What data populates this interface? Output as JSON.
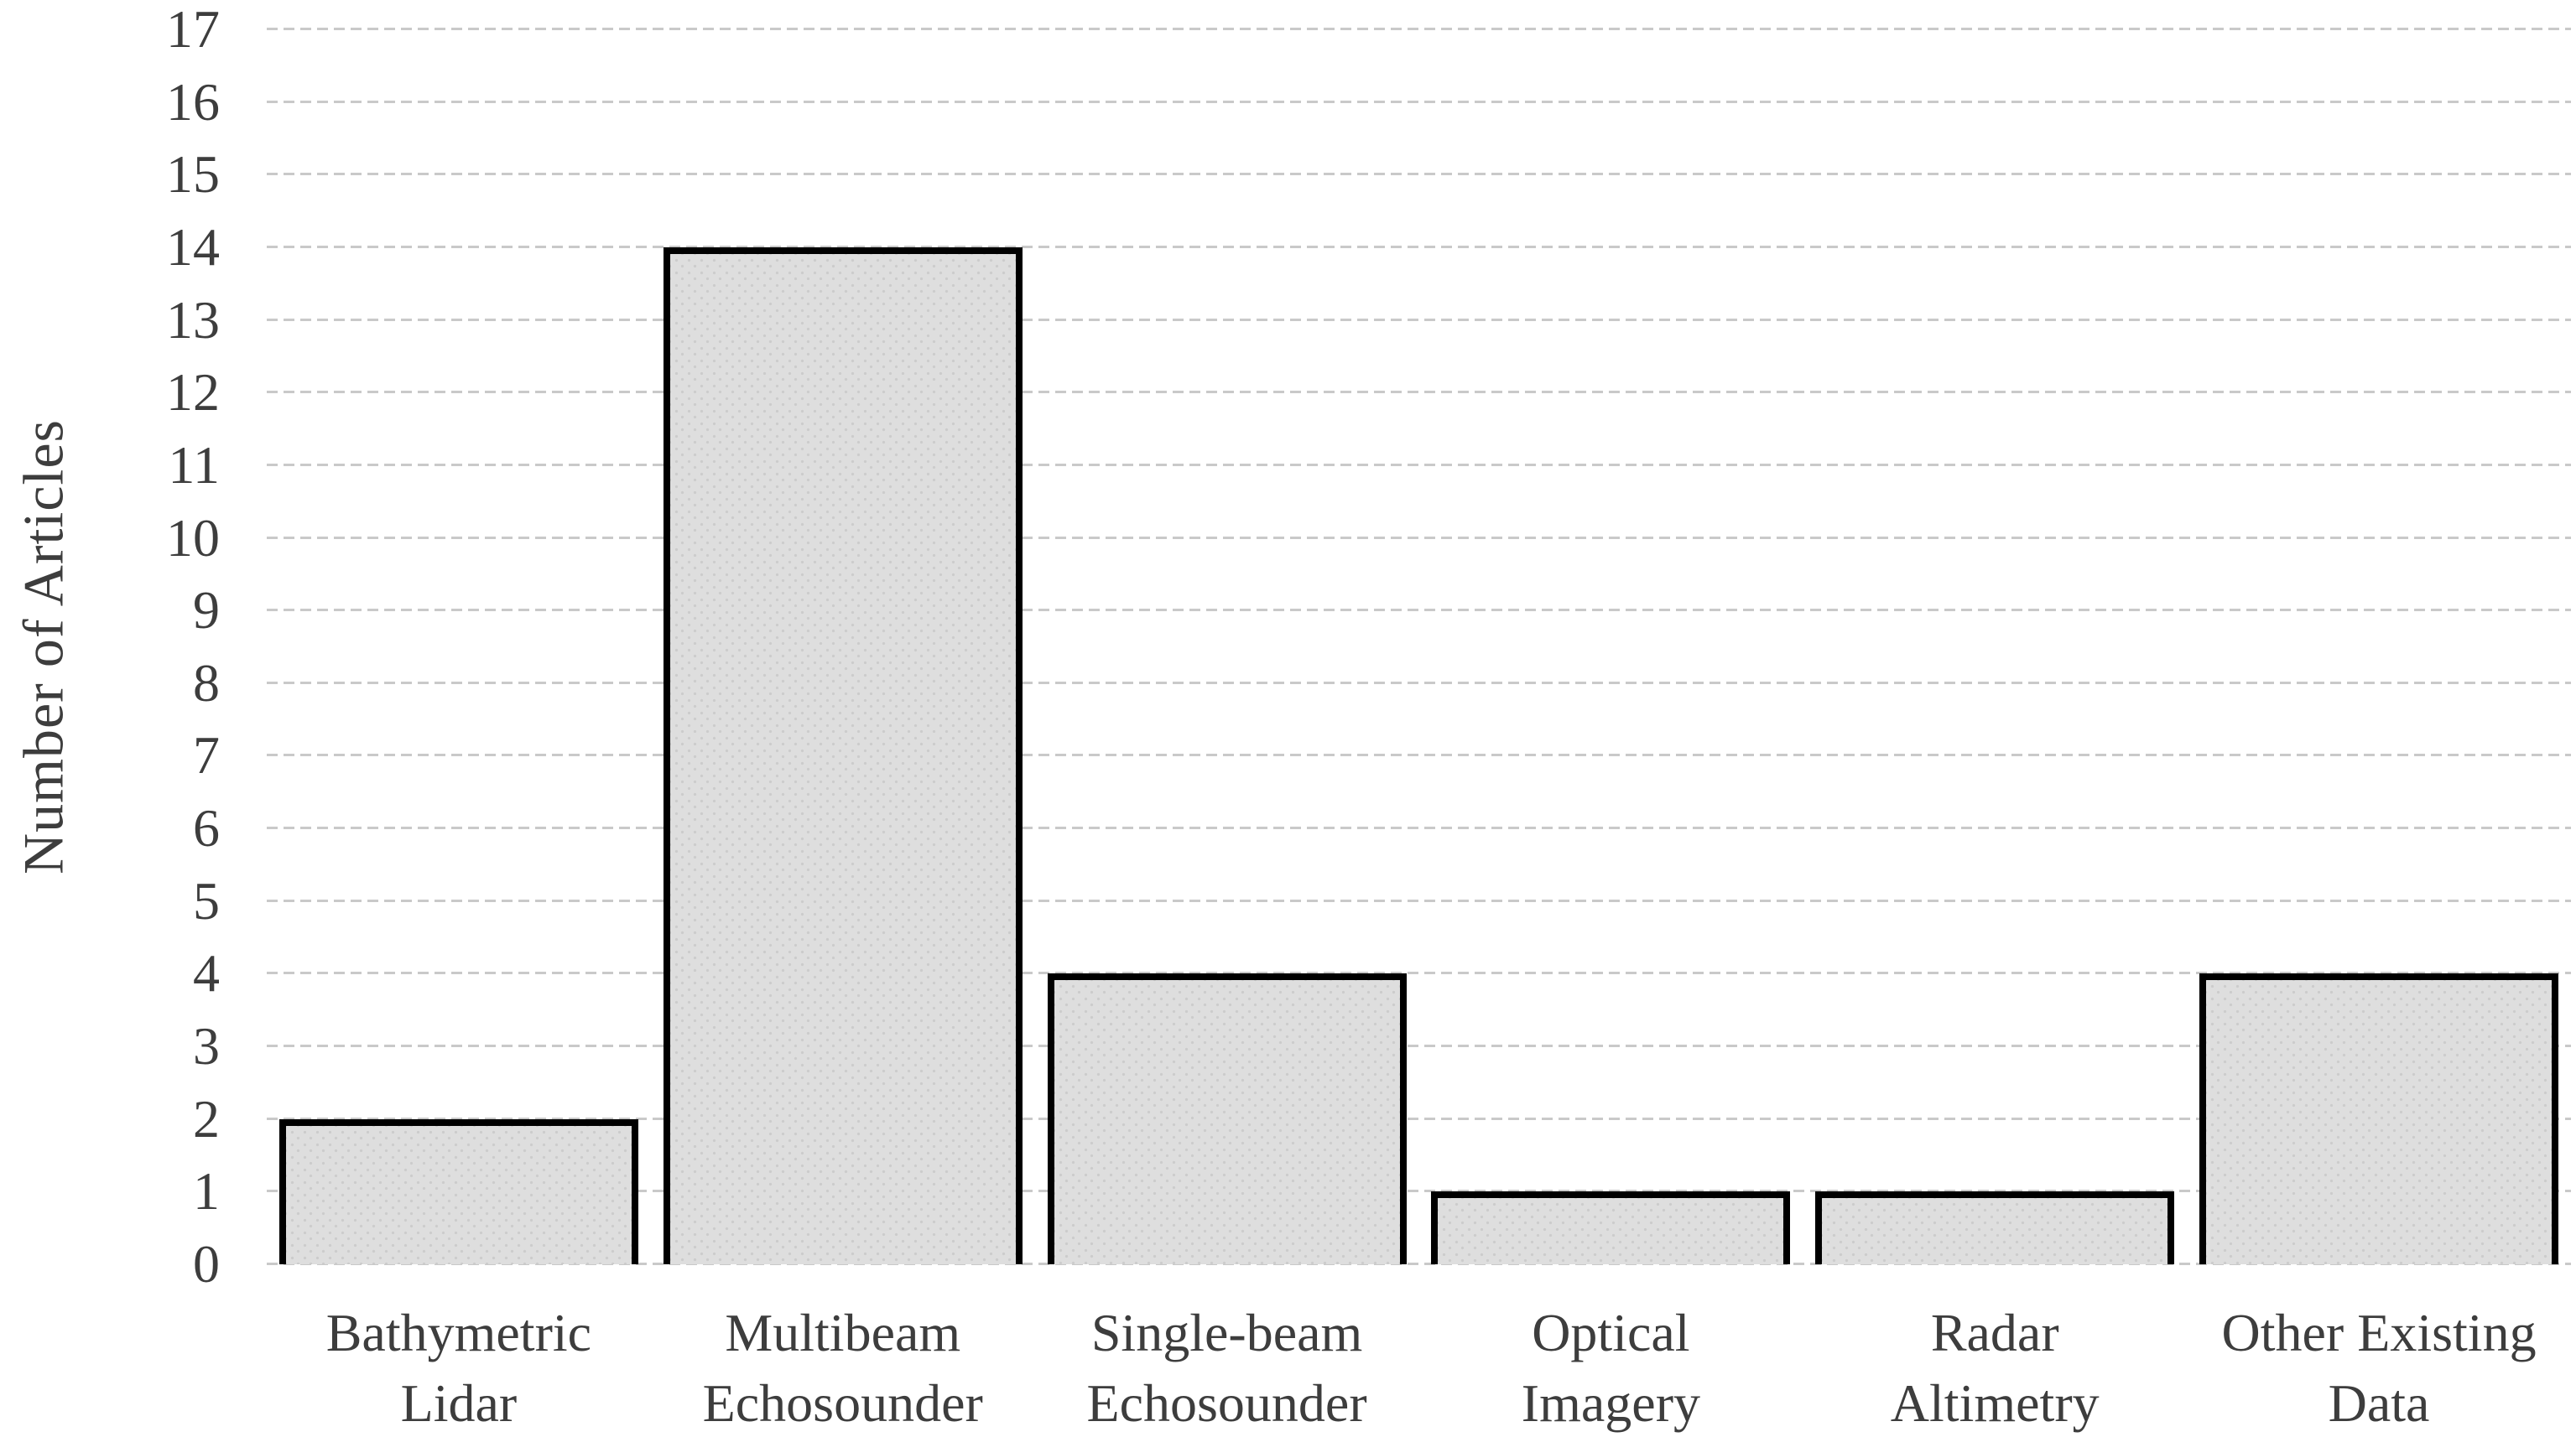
{
  "page": {
    "background_color": "#ffffff",
    "text_color": "#3d3d3d"
  },
  "chart_data": {
    "type": "bar",
    "title": "",
    "xlabel": "",
    "ylabel": "Number of Articles",
    "categories": [
      "Bathymetric\nLidar",
      "Multibeam\nEchosounder",
      "Single-beam\nEchosounder",
      "Optical\nImagery",
      "Radar\nAltimetry",
      "Other Existing\nData"
    ],
    "values": [
      2,
      14,
      4,
      1,
      1,
      4
    ],
    "ylim": [
      0,
      17
    ],
    "ytick_step": 1,
    "grid": "horizontal-dashed",
    "legend": "none",
    "bar_fill_color": "#dedede",
    "bar_pattern_color": "#cccccc",
    "bar_border_color": "#000000",
    "gridline_color": "#c9c9c9",
    "axis_text_color": "#3d3d3d"
  }
}
